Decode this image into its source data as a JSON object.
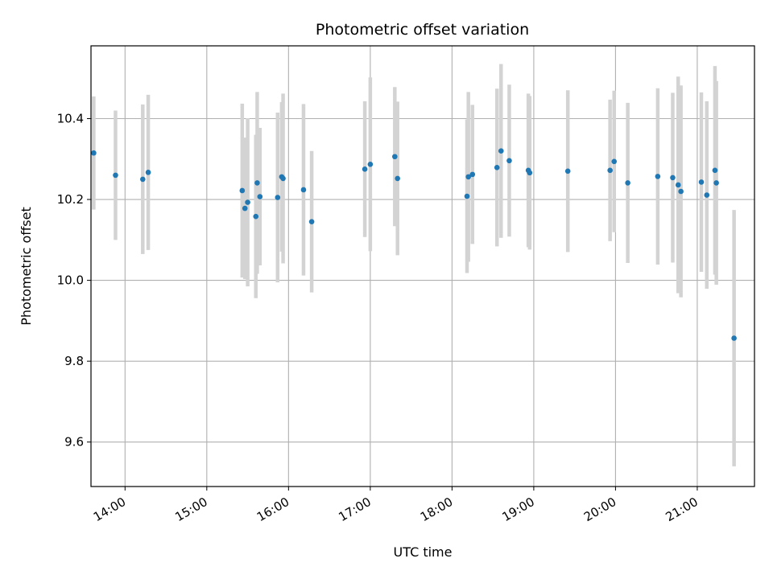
{
  "chart_data": {
    "type": "scatter",
    "title": "Photometric offset variation",
    "xlabel": "UTC time",
    "ylabel": "Photometric offset",
    "grid": true,
    "x_ticks": [
      "14:00",
      "15:00",
      "16:00",
      "17:00",
      "18:00",
      "19:00",
      "20:00",
      "21:00"
    ],
    "y_ticks": [
      "9.6",
      "9.8",
      "10.0",
      "10.2",
      "10.4"
    ],
    "xlim": [
      "13:35",
      "21:42"
    ],
    "ylim": [
      9.49,
      10.58
    ],
    "colors": {
      "point": "#1f77b4",
      "errorbar": "#d3d3d3",
      "grid": "#b0b0b0"
    },
    "points": [
      {
        "x": "13:37",
        "y": 10.315,
        "err": 0.14
      },
      {
        "x": "13:53",
        "y": 10.26,
        "err": 0.16
      },
      {
        "x": "14:13",
        "y": 10.25,
        "err": 0.185
      },
      {
        "x": "14:17",
        "y": 10.267,
        "err": 0.192
      },
      {
        "x": "15:26",
        "y": 10.222,
        "err": 0.215
      },
      {
        "x": "15:28",
        "y": 10.178,
        "err": 0.175
      },
      {
        "x": "15:30",
        "y": 10.193,
        "err": 0.208
      },
      {
        "x": "15:36",
        "y": 10.158,
        "err": 0.202
      },
      {
        "x": "15:37",
        "y": 10.241,
        "err": 0.225
      },
      {
        "x": "15:39",
        "y": 10.207,
        "err": 0.17
      },
      {
        "x": "15:52",
        "y": 10.205,
        "err": 0.21
      },
      {
        "x": "15:55",
        "y": 10.256,
        "err": 0.185
      },
      {
        "x": "15:56",
        "y": 10.252,
        "err": 0.21
      },
      {
        "x": "16:11",
        "y": 10.224,
        "err": 0.212
      },
      {
        "x": "16:17",
        "y": 10.145,
        "err": 0.175
      },
      {
        "x": "16:56",
        "y": 10.275,
        "err": 0.168
      },
      {
        "x": "17:00",
        "y": 10.287,
        "err": 0.215
      },
      {
        "x": "17:18",
        "y": 10.306,
        "err": 0.172
      },
      {
        "x": "17:20",
        "y": 10.252,
        "err": 0.19
      },
      {
        "x": "18:11",
        "y": 10.208,
        "err": 0.19
      },
      {
        "x": "18:12",
        "y": 10.256,
        "err": 0.21
      },
      {
        "x": "18:15",
        "y": 10.262,
        "err": 0.172
      },
      {
        "x": "18:33",
        "y": 10.279,
        "err": 0.195
      },
      {
        "x": "18:36",
        "y": 10.32,
        "err": 0.215
      },
      {
        "x": "18:42",
        "y": 10.296,
        "err": 0.188
      },
      {
        "x": "18:56",
        "y": 10.272,
        "err": 0.19
      },
      {
        "x": "18:57",
        "y": 10.266,
        "err": 0.19
      },
      {
        "x": "19:25",
        "y": 10.27,
        "err": 0.2
      },
      {
        "x": "19:56",
        "y": 10.272,
        "err": 0.175
      },
      {
        "x": "19:59",
        "y": 10.294,
        "err": 0.175
      },
      {
        "x": "20:09",
        "y": 10.241,
        "err": 0.198
      },
      {
        "x": "20:31",
        "y": 10.257,
        "err": 0.218
      },
      {
        "x": "20:42",
        "y": 10.254,
        "err": 0.21
      },
      {
        "x": "20:46",
        "y": 10.236,
        "err": 0.268
      },
      {
        "x": "20:48",
        "y": 10.22,
        "err": 0.262
      },
      {
        "x": "21:03",
        "y": 10.243,
        "err": 0.222
      },
      {
        "x": "21:07",
        "y": 10.211,
        "err": 0.232
      },
      {
        "x": "21:13",
        "y": 10.272,
        "err": 0.258
      },
      {
        "x": "21:14",
        "y": 10.241,
        "err": 0.252
      },
      {
        "x": "21:27",
        "y": 9.857,
        "err": 0.317
      }
    ]
  }
}
